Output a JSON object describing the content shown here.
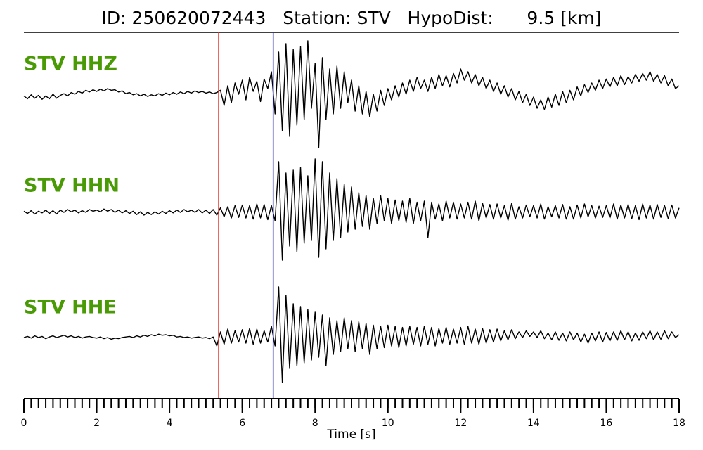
{
  "chart_data": {
    "type": "seismogram",
    "title": "ID: 250620072443   Station: STV   HypoDist:      9.5 [km]",
    "xlabel": "Time [s]",
    "xlim": [
      0,
      18
    ],
    "xticks": [
      0,
      2,
      4,
      6,
      8,
      10,
      12,
      14,
      16,
      18
    ],
    "xminorticks": [
      0,
      0.2,
      0.4,
      0.6,
      0.8,
      1,
      1.2,
      1.4,
      1.6,
      1.8,
      2,
      2.2,
      2.4,
      2.6,
      2.8,
      3,
      3.2,
      3.4,
      3.6,
      3.8,
      4,
      4.2,
      4.4,
      4.6,
      4.8,
      5,
      5.2,
      5.4,
      5.6,
      5.8,
      6,
      6.2,
      6.4,
      6.6,
      6.8,
      7,
      7.2,
      7.4,
      7.6,
      7.8,
      8,
      8.2,
      8.4,
      8.6,
      8.8,
      9,
      9.2,
      9.4,
      9.6,
      9.8,
      10,
      10.2,
      10.4,
      10.6,
      10.8,
      11,
      11.2,
      11.4,
      11.6,
      11.8,
      12,
      12.2,
      12.4,
      12.6,
      12.8,
      13,
      13.2,
      13.4,
      13.6,
      13.8,
      14,
      14.2,
      14.4,
      14.6,
      14.8,
      15,
      15.2,
      15.4,
      15.6,
      15.8,
      16,
      16.2,
      16.4,
      16.6,
      16.8,
      17,
      17.2,
      17.4,
      17.6,
      17.8,
      18
    ],
    "ylim": [
      -1,
      1
    ],
    "label_color": "#4a9a06",
    "picks": [
      {
        "time": 5.35,
        "color": "#e8342a"
      },
      {
        "time": 6.85,
        "color": "#2a2ab0"
      }
    ],
    "x": [
      0,
      0.1,
      0.2,
      0.3,
      0.4,
      0.5,
      0.6,
      0.7,
      0.8,
      0.9,
      1,
      1.1,
      1.2,
      1.3,
      1.4,
      1.5,
      1.6,
      1.7,
      1.8,
      1.9,
      2,
      2.1,
      2.2,
      2.3,
      2.4,
      2.5,
      2.6,
      2.7,
      2.8,
      2.9,
      3,
      3.1,
      3.2,
      3.3,
      3.4,
      3.5,
      3.6,
      3.7,
      3.8,
      3.9,
      4,
      4.1,
      4.2,
      4.3,
      4.4,
      4.5,
      4.6,
      4.7,
      4.8,
      4.9,
      5,
      5.1,
      5.2,
      5.3,
      5.4,
      5.5,
      5.6,
      5.7,
      5.8,
      5.9,
      6,
      6.1,
      6.2,
      6.3,
      6.4,
      6.5,
      6.6,
      6.7,
      6.8,
      6.9,
      7,
      7.1,
      7.2,
      7.3,
      7.4,
      7.5,
      7.6,
      7.7,
      7.8,
      7.9,
      8,
      8.1,
      8.2,
      8.3,
      8.4,
      8.5,
      8.6,
      8.7,
      8.8,
      8.9,
      9,
      9.1,
      9.2,
      9.3,
      9.4,
      9.5,
      9.6,
      9.7,
      9.8,
      9.9,
      10,
      10.1,
      10.2,
      10.3,
      10.4,
      10.5,
      10.6,
      10.7,
      10.8,
      10.9,
      11,
      11.1,
      11.2,
      11.3,
      11.4,
      11.5,
      11.6,
      11.7,
      11.8,
      11.9,
      12,
      12.1,
      12.2,
      12.3,
      12.4,
      12.5,
      12.6,
      12.7,
      12.8,
      12.9,
      13,
      13.1,
      13.2,
      13.3,
      13.4,
      13.5,
      13.6,
      13.7,
      13.8,
      13.9,
      14,
      14.1,
      14.2,
      14.3,
      14.4,
      14.5,
      14.6,
      14.7,
      14.8,
      14.9,
      15,
      15.1,
      15.2,
      15.3,
      15.4,
      15.5,
      15.6,
      15.7,
      15.8,
      15.9,
      16,
      16.1,
      16.2,
      16.3,
      16.4,
      16.5,
      16.6,
      16.7,
      16.8,
      16.9,
      17,
      17.1,
      17.2,
      17.3,
      17.4,
      17.5,
      17.6,
      17.7,
      17.8,
      17.9,
      18
    ],
    "series": [
      {
        "name": "STV HHZ",
        "color": "#000000",
        "values": [
          0.02,
          -0.03,
          0.04,
          -0.02,
          0.03,
          -0.04,
          0.02,
          -0.03,
          0.05,
          -0.02,
          0.03,
          0.06,
          0.02,
          0.08,
          0.05,
          0.1,
          0.07,
          0.12,
          0.09,
          0.13,
          0.1,
          0.14,
          0.11,
          0.15,
          0.12,
          0.13,
          0.09,
          0.11,
          0.06,
          0.08,
          0.04,
          0.06,
          0.02,
          0.05,
          0.01,
          0.04,
          0.02,
          0.06,
          0.03,
          0.07,
          0.04,
          0.08,
          0.05,
          0.09,
          0.06,
          0.1,
          0.07,
          0.11,
          0.08,
          0.1,
          0.07,
          0.09,
          0.06,
          0.08,
          0.12,
          -0.15,
          0.2,
          -0.1,
          0.25,
          0.05,
          0.3,
          -0.05,
          0.35,
          0.1,
          0.28,
          -0.08,
          0.32,
          0.15,
          0.45,
          -0.3,
          0.8,
          -0.6,
          0.95,
          -0.7,
          0.85,
          -0.5,
          0.9,
          -0.4,
          1.0,
          -0.2,
          0.6,
          -0.9,
          0.7,
          -0.4,
          0.5,
          -0.3,
          0.55,
          -0.2,
          0.45,
          -0.1,
          0.3,
          -0.25,
          0.2,
          -0.3,
          0.1,
          -0.35,
          0.05,
          -0.25,
          0.12,
          -0.15,
          0.15,
          -0.05,
          0.2,
          0.0,
          0.25,
          0.05,
          0.3,
          0.1,
          0.35,
          0.15,
          0.3,
          0.1,
          0.35,
          0.15,
          0.4,
          0.2,
          0.38,
          0.18,
          0.42,
          0.25,
          0.5,
          0.3,
          0.45,
          0.25,
          0.4,
          0.2,
          0.35,
          0.15,
          0.3,
          0.1,
          0.25,
          0.05,
          0.2,
          0.0,
          0.15,
          -0.05,
          0.1,
          -0.1,
          0.05,
          -0.15,
          0.0,
          -0.2,
          -0.05,
          -0.22,
          0.0,
          -0.18,
          0.05,
          -0.15,
          0.1,
          -0.1,
          0.12,
          -0.05,
          0.18,
          0.02,
          0.22,
          0.08,
          0.25,
          0.12,
          0.3,
          0.15,
          0.32,
          0.18,
          0.35,
          0.2,
          0.38,
          0.22,
          0.36,
          0.25,
          0.4,
          0.28,
          0.42,
          0.3,
          0.45,
          0.28,
          0.4,
          0.25,
          0.38,
          0.2,
          0.32,
          0.15,
          0.2
        ]
      },
      {
        "name": "STV HHN",
        "color": "#000000",
        "values": [
          0.02,
          -0.02,
          0.03,
          -0.03,
          0.02,
          -0.01,
          0.04,
          -0.02,
          0.03,
          -0.03,
          0.04,
          0.0,
          0.05,
          0.01,
          0.04,
          -0.01,
          0.03,
          0.0,
          0.05,
          0.02,
          0.04,
          0.01,
          0.06,
          0.02,
          0.05,
          0.0,
          0.04,
          -0.01,
          0.03,
          -0.02,
          0.02,
          -0.04,
          0.01,
          -0.05,
          0.0,
          -0.04,
          0.01,
          -0.03,
          0.02,
          -0.02,
          0.03,
          -0.01,
          0.04,
          0.0,
          0.05,
          0.01,
          0.04,
          0.0,
          0.05,
          -0.01,
          0.04,
          -0.02,
          0.05,
          -0.05,
          0.08,
          -0.08,
          0.1,
          -0.1,
          0.12,
          -0.09,
          0.13,
          -0.1,
          0.12,
          -0.12,
          0.15,
          -0.1,
          0.14,
          -0.13,
          0.12,
          -0.15,
          0.9,
          -0.85,
          0.7,
          -0.6,
          0.75,
          -0.7,
          0.8,
          -0.55,
          0.65,
          -0.5,
          0.95,
          -0.8,
          0.9,
          -0.65,
          0.7,
          -0.5,
          0.6,
          -0.45,
          0.5,
          -0.35,
          0.45,
          -0.3,
          0.35,
          -0.25,
          0.3,
          -0.3,
          0.25,
          -0.2,
          0.3,
          -0.15,
          0.25,
          -0.2,
          0.22,
          -0.15,
          0.2,
          -0.18,
          0.25,
          -0.2,
          0.18,
          -0.15,
          0.2,
          -0.45,
          0.18,
          -0.12,
          0.15,
          -0.15,
          0.2,
          -0.1,
          0.18,
          -0.12,
          0.15,
          -0.1,
          0.18,
          -0.12,
          0.2,
          -0.15,
          0.16,
          -0.1,
          0.14,
          -0.12,
          0.15,
          -0.1,
          0.12,
          -0.14,
          0.16,
          -0.12,
          0.1,
          -0.1,
          0.13,
          -0.08,
          0.12,
          -0.1,
          0.15,
          -0.12,
          0.1,
          -0.08,
          0.12,
          -0.1,
          0.14,
          -0.12,
          0.1,
          -0.12,
          0.13,
          -0.1,
          0.15,
          -0.08,
          0.12,
          -0.1,
          0.11,
          -0.09,
          0.12,
          -0.1,
          0.15,
          -0.12,
          0.13,
          -0.1,
          0.14,
          -0.11,
          0.12,
          -0.13,
          0.15,
          -0.1,
          0.13,
          -0.12,
          0.14,
          -0.09,
          0.12,
          -0.11,
          0.13,
          -0.1,
          0.08
        ]
      },
      {
        "name": "STV HHE",
        "color": "#000000",
        "values": [
          0.0,
          0.02,
          -0.01,
          0.03,
          0.0,
          0.02,
          -0.02,
          0.01,
          0.03,
          0.0,
          0.02,
          0.04,
          0.01,
          0.03,
          0.0,
          0.02,
          -0.01,
          0.01,
          0.02,
          0.0,
          -0.01,
          0.01,
          -0.02,
          0.0,
          -0.03,
          -0.01,
          -0.02,
          0.0,
          0.01,
          0.02,
          0.0,
          0.03,
          0.01,
          0.04,
          0.02,
          0.05,
          0.03,
          0.06,
          0.04,
          0.05,
          0.03,
          0.04,
          0.01,
          0.02,
          0.0,
          0.01,
          -0.01,
          0.0,
          0.01,
          -0.01,
          0.0,
          -0.02,
          0.01,
          -0.15,
          0.1,
          -0.12,
          0.15,
          -0.1,
          0.12,
          -0.08,
          0.14,
          -0.1,
          0.16,
          -0.12,
          0.15,
          -0.1,
          0.12,
          -0.08,
          0.2,
          -0.15,
          0.9,
          -0.8,
          0.75,
          -0.55,
          0.6,
          -0.5,
          0.55,
          -0.45,
          0.5,
          -0.4,
          0.45,
          -0.35,
          0.4,
          -0.5,
          0.35,
          -0.3,
          0.3,
          -0.25,
          0.35,
          -0.2,
          0.3,
          -0.25,
          0.28,
          -0.2,
          0.25,
          -0.3,
          0.22,
          -0.2,
          0.2,
          -0.18,
          0.22,
          -0.15,
          0.2,
          -0.18,
          0.18,
          -0.15,
          0.2,
          -0.12,
          0.18,
          -0.15,
          0.2,
          -0.12,
          0.18,
          -0.15,
          0.16,
          -0.1,
          0.18,
          -0.12,
          0.15,
          -0.1,
          0.18,
          -0.12,
          0.2,
          -0.1,
          0.15,
          -0.12,
          0.16,
          -0.1,
          0.14,
          -0.08,
          0.15,
          -0.06,
          0.12,
          -0.04,
          0.14,
          -0.02,
          0.1,
          0.0,
          0.12,
          0.02,
          0.1,
          0.0,
          0.12,
          -0.02,
          0.08,
          -0.04,
          0.1,
          -0.05,
          0.08,
          -0.06,
          0.1,
          -0.04,
          0.08,
          -0.08,
          0.06,
          -0.1,
          0.08,
          -0.06,
          0.1,
          -0.08,
          0.09,
          -0.06,
          0.1,
          -0.05,
          0.12,
          -0.04,
          0.1,
          -0.06,
          0.08,
          -0.05,
          0.1,
          -0.02,
          0.12,
          -0.04,
          0.1,
          -0.03,
          0.12,
          -0.02,
          0.1,
          0.0,
          0.05
        ]
      }
    ]
  }
}
